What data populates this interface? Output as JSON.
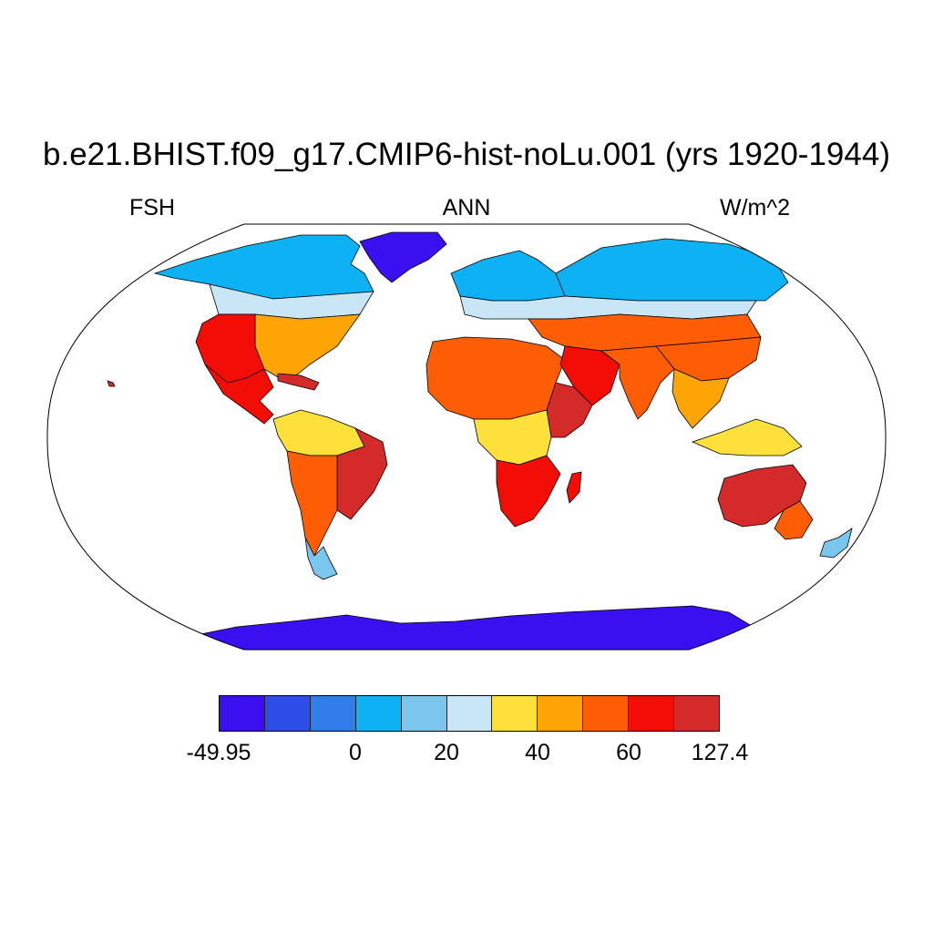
{
  "title": "b.e21.BHIST.f09_g17.CMIP6-hist-noLu.001 (yrs 1920-1944)",
  "subtitles": {
    "left": "FSH",
    "center": "ANN",
    "right": "W/m^2"
  },
  "map": {
    "projection": "Robinson",
    "ocean_color": "#ffffff",
    "coastline_color": "#000000",
    "regions": [
      {
        "name": "greenland",
        "level": 0
      },
      {
        "name": "antarctica",
        "level": 0
      },
      {
        "name": "canada-arctic",
        "level": 3
      },
      {
        "name": "canada-south",
        "level": 5
      },
      {
        "name": "usa-east",
        "level": 7
      },
      {
        "name": "usa-west",
        "level": 9
      },
      {
        "name": "mexico",
        "level": 9
      },
      {
        "name": "amazon",
        "level": 6
      },
      {
        "name": "south-america-east",
        "level": 10
      },
      {
        "name": "south-america-south",
        "level": 8
      },
      {
        "name": "patagonia",
        "level": 4
      },
      {
        "name": "northern-europe",
        "level": 3
      },
      {
        "name": "siberia",
        "level": 3
      },
      {
        "name": "central-europe",
        "level": 5
      },
      {
        "name": "central-asia",
        "level": 8
      },
      {
        "name": "sahara",
        "level": 8
      },
      {
        "name": "arabia",
        "level": 9
      },
      {
        "name": "horn-of-africa",
        "level": 10
      },
      {
        "name": "central-africa",
        "level": 6
      },
      {
        "name": "southern-africa",
        "level": 9
      },
      {
        "name": "madagascar",
        "level": 9
      },
      {
        "name": "india",
        "level": 8
      },
      {
        "name": "china",
        "level": 8
      },
      {
        "name": "southeast-asia",
        "level": 7
      },
      {
        "name": "indonesia",
        "level": 6
      },
      {
        "name": "australia",
        "level": 10
      },
      {
        "name": "australia-southeast",
        "level": 8
      },
      {
        "name": "new-zealand",
        "level": 4
      },
      {
        "name": "caribbean",
        "level": 10
      }
    ]
  },
  "colorbar": {
    "colors": [
      "#3b10f0",
      "#2c4ee6",
      "#2e7de8",
      "#0db2f5",
      "#7bc6ee",
      "#c9e6f7",
      "#fde03a",
      "#fca504",
      "#fd5d04",
      "#f20d06",
      "#d42a2a"
    ],
    "labels": [
      "-49.95",
      "0",
      "20",
      "40",
      "60",
      "127.4"
    ],
    "label_boundaries": [
      0,
      3,
      5,
      7,
      9,
      11
    ]
  },
  "icons": {
    "map": "world-map-robinson"
  }
}
